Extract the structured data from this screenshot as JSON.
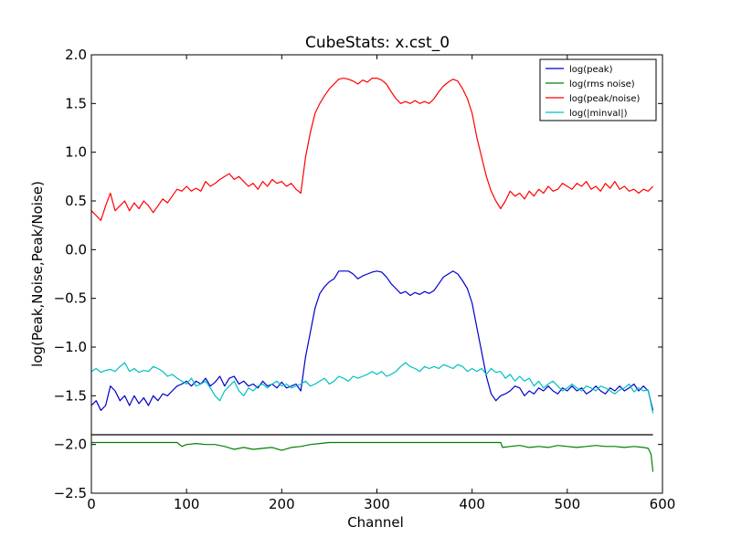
{
  "chart_data": {
    "type": "line",
    "title": "CubeStats: x.cst_0",
    "xlabel": "Channel",
    "ylabel": "log(Peak,Noise,Peak/Noise)",
    "xlim": [
      0,
      600
    ],
    "ylim": [
      -2.5,
      2.0
    ],
    "xticks": [
      "0",
      "100",
      "200",
      "300",
      "400",
      "500",
      "600"
    ],
    "yticks": [
      "2.0",
      "1.5",
      "1.0",
      "0.5",
      "0.0",
      "−0.5",
      "−1.0",
      "−1.5",
      "−2.0",
      "−2.5"
    ],
    "xtick_values": [
      0,
      100,
      200,
      300,
      400,
      500,
      600
    ],
    "ytick_values": [
      2.0,
      1.5,
      1.0,
      0.5,
      0.0,
      -0.5,
      -1.0,
      -1.5,
      -2.0,
      -2.5
    ],
    "grid": false,
    "legend_position": "top-right",
    "series": [
      {
        "name": "log(peak)",
        "color": "#0000cc",
        "x": [
          0,
          5,
          10,
          15,
          20,
          25,
          30,
          35,
          40,
          45,
          50,
          55,
          60,
          65,
          70,
          75,
          80,
          85,
          90,
          95,
          100,
          105,
          110,
          115,
          120,
          125,
          130,
          135,
          140,
          145,
          150,
          155,
          160,
          165,
          170,
          175,
          180,
          185,
          190,
          195,
          200,
          205,
          210,
          215,
          220,
          225,
          230,
          235,
          240,
          245,
          250,
          255,
          260,
          265,
          270,
          275,
          280,
          285,
          290,
          295,
          300,
          305,
          310,
          315,
          320,
          325,
          330,
          335,
          340,
          345,
          350,
          355,
          360,
          365,
          370,
          375,
          380,
          385,
          390,
          395,
          400,
          405,
          410,
          415,
          420,
          425,
          430,
          435,
          440,
          445,
          450,
          455,
          460,
          465,
          470,
          475,
          480,
          485,
          490,
          495,
          500,
          505,
          510,
          515,
          520,
          525,
          530,
          535,
          540,
          545,
          550,
          555,
          560,
          565,
          570,
          575,
          580,
          585,
          590
        ],
        "values": [
          -1.6,
          -1.55,
          -1.65,
          -1.6,
          -1.4,
          -1.45,
          -1.55,
          -1.5,
          -1.6,
          -1.5,
          -1.58,
          -1.52,
          -1.6,
          -1.5,
          -1.55,
          -1.48,
          -1.5,
          -1.45,
          -1.4,
          -1.38,
          -1.35,
          -1.4,
          -1.35,
          -1.38,
          -1.32,
          -1.4,
          -1.36,
          -1.3,
          -1.4,
          -1.32,
          -1.3,
          -1.38,
          -1.35,
          -1.4,
          -1.38,
          -1.42,
          -1.35,
          -1.4,
          -1.38,
          -1.42,
          -1.36,
          -1.42,
          -1.4,
          -1.38,
          -1.45,
          -1.1,
          -0.85,
          -0.6,
          -0.45,
          -0.38,
          -0.33,
          -0.3,
          -0.22,
          -0.22,
          -0.22,
          -0.25,
          -0.3,
          -0.27,
          -0.25,
          -0.23,
          -0.22,
          -0.23,
          -0.28,
          -0.35,
          -0.4,
          -0.45,
          -0.43,
          -0.47,
          -0.44,
          -0.46,
          -0.43,
          -0.45,
          -0.42,
          -0.35,
          -0.28,
          -0.25,
          -0.22,
          -0.25,
          -0.32,
          -0.4,
          -0.55,
          -0.8,
          -1.05,
          -1.3,
          -1.48,
          -1.55,
          -1.5,
          -1.48,
          -1.45,
          -1.4,
          -1.42,
          -1.5,
          -1.45,
          -1.48,
          -1.42,
          -1.45,
          -1.4,
          -1.45,
          -1.48,
          -1.42,
          -1.45,
          -1.4,
          -1.45,
          -1.42,
          -1.48,
          -1.45,
          -1.4,
          -1.45,
          -1.48,
          -1.42,
          -1.45,
          -1.4,
          -1.45,
          -1.42,
          -1.38,
          -1.45,
          -1.4,
          -1.45,
          -1.65
        ]
      },
      {
        "name": "log(rms noise)",
        "color": "#008000",
        "x": [
          0,
          20,
          40,
          60,
          80,
          90,
          95,
          100,
          110,
          120,
          130,
          140,
          150,
          160,
          170,
          180,
          190,
          200,
          210,
          220,
          230,
          240,
          250,
          260,
          280,
          300,
          320,
          340,
          360,
          380,
          400,
          420,
          430,
          432,
          440,
          450,
          460,
          470,
          480,
          490,
          500,
          510,
          520,
          530,
          540,
          550,
          560,
          570,
          580,
          585,
          588,
          590
        ],
        "values": [
          -1.98,
          -1.98,
          -1.98,
          -1.98,
          -1.98,
          -1.98,
          -2.02,
          -2.0,
          -1.99,
          -2.0,
          -2.0,
          -2.02,
          -2.05,
          -2.03,
          -2.05,
          -2.04,
          -2.03,
          -2.06,
          -2.03,
          -2.02,
          -2.0,
          -1.99,
          -1.98,
          -1.98,
          -1.98,
          -1.98,
          -1.98,
          -1.98,
          -1.98,
          -1.98,
          -1.98,
          -1.98,
          -1.98,
          -2.03,
          -2.02,
          -2.01,
          -2.03,
          -2.02,
          -2.03,
          -2.01,
          -2.02,
          -2.03,
          -2.02,
          -2.01,
          -2.02,
          -2.02,
          -2.03,
          -2.02,
          -2.03,
          -2.04,
          -2.1,
          -2.28
        ]
      },
      {
        "name": "log(peak/noise)",
        "color": "#ff0000",
        "x": [
          0,
          5,
          10,
          15,
          20,
          25,
          30,
          35,
          40,
          45,
          50,
          55,
          60,
          65,
          70,
          75,
          80,
          85,
          90,
          95,
          100,
          105,
          110,
          115,
          120,
          125,
          130,
          135,
          140,
          145,
          150,
          155,
          160,
          165,
          170,
          175,
          180,
          185,
          190,
          195,
          200,
          205,
          210,
          215,
          220,
          225,
          230,
          235,
          240,
          245,
          250,
          255,
          260,
          265,
          270,
          275,
          280,
          285,
          290,
          295,
          300,
          305,
          310,
          315,
          320,
          325,
          330,
          335,
          340,
          345,
          350,
          355,
          360,
          365,
          370,
          375,
          380,
          385,
          390,
          395,
          400,
          405,
          410,
          415,
          420,
          425,
          430,
          435,
          440,
          445,
          450,
          455,
          460,
          465,
          470,
          475,
          480,
          485,
          490,
          495,
          500,
          505,
          510,
          515,
          520,
          525,
          530,
          535,
          540,
          545,
          550,
          555,
          560,
          565,
          570,
          575,
          580,
          585,
          590
        ],
        "values": [
          0.4,
          0.35,
          0.3,
          0.45,
          0.58,
          0.4,
          0.45,
          0.5,
          0.4,
          0.48,
          0.42,
          0.5,
          0.45,
          0.38,
          0.45,
          0.52,
          0.48,
          0.55,
          0.62,
          0.6,
          0.65,
          0.6,
          0.63,
          0.6,
          0.7,
          0.65,
          0.68,
          0.72,
          0.75,
          0.78,
          0.72,
          0.75,
          0.7,
          0.65,
          0.68,
          0.62,
          0.7,
          0.65,
          0.72,
          0.68,
          0.7,
          0.65,
          0.68,
          0.62,
          0.58,
          0.95,
          1.2,
          1.4,
          1.5,
          1.58,
          1.65,
          1.7,
          1.75,
          1.76,
          1.75,
          1.73,
          1.7,
          1.74,
          1.72,
          1.76,
          1.76,
          1.74,
          1.7,
          1.62,
          1.55,
          1.5,
          1.52,
          1.5,
          1.53,
          1.5,
          1.52,
          1.5,
          1.55,
          1.62,
          1.68,
          1.72,
          1.75,
          1.73,
          1.65,
          1.55,
          1.4,
          1.15,
          0.95,
          0.75,
          0.6,
          0.5,
          0.42,
          0.5,
          0.6,
          0.55,
          0.58,
          0.52,
          0.6,
          0.55,
          0.62,
          0.58,
          0.65,
          0.6,
          0.62,
          0.68,
          0.65,
          0.62,
          0.68,
          0.65,
          0.7,
          0.62,
          0.65,
          0.6,
          0.68,
          0.63,
          0.7,
          0.62,
          0.65,
          0.6,
          0.62,
          0.58,
          0.62,
          0.6,
          0.65
        ]
      },
      {
        "name": "log(|minval|)",
        "color": "#00bfbf",
        "x": [
          0,
          5,
          10,
          15,
          20,
          25,
          30,
          35,
          40,
          45,
          50,
          55,
          60,
          65,
          70,
          75,
          80,
          85,
          90,
          95,
          100,
          105,
          110,
          115,
          120,
          125,
          130,
          135,
          140,
          145,
          150,
          155,
          160,
          165,
          170,
          175,
          180,
          185,
          190,
          195,
          200,
          205,
          210,
          215,
          220,
          225,
          230,
          235,
          240,
          245,
          250,
          255,
          260,
          265,
          270,
          275,
          280,
          285,
          290,
          295,
          300,
          305,
          310,
          315,
          320,
          325,
          330,
          335,
          340,
          345,
          350,
          355,
          360,
          365,
          370,
          375,
          380,
          385,
          390,
          395,
          400,
          405,
          410,
          415,
          420,
          425,
          430,
          435,
          440,
          445,
          450,
          455,
          460,
          465,
          470,
          475,
          480,
          485,
          490,
          495,
          500,
          505,
          510,
          515,
          520,
          525,
          530,
          535,
          540,
          545,
          550,
          555,
          560,
          565,
          570,
          575,
          580,
          585,
          590
        ],
        "values": [
          -1.25,
          -1.22,
          -1.26,
          -1.24,
          -1.23,
          -1.25,
          -1.2,
          -1.16,
          -1.25,
          -1.22,
          -1.26,
          -1.24,
          -1.25,
          -1.2,
          -1.22,
          -1.25,
          -1.3,
          -1.28,
          -1.32,
          -1.35,
          -1.38,
          -1.32,
          -1.4,
          -1.38,
          -1.35,
          -1.42,
          -1.5,
          -1.55,
          -1.45,
          -1.4,
          -1.35,
          -1.45,
          -1.5,
          -1.42,
          -1.45,
          -1.4,
          -1.38,
          -1.42,
          -1.38,
          -1.35,
          -1.4,
          -1.38,
          -1.42,
          -1.4,
          -1.38,
          -1.35,
          -1.4,
          -1.38,
          -1.35,
          -1.32,
          -1.38,
          -1.35,
          -1.3,
          -1.32,
          -1.35,
          -1.3,
          -1.32,
          -1.3,
          -1.28,
          -1.25,
          -1.28,
          -1.25,
          -1.3,
          -1.28,
          -1.25,
          -1.2,
          -1.16,
          -1.2,
          -1.22,
          -1.25,
          -1.2,
          -1.22,
          -1.2,
          -1.22,
          -1.18,
          -1.2,
          -1.22,
          -1.18,
          -1.2,
          -1.25,
          -1.22,
          -1.25,
          -1.22,
          -1.28,
          -1.22,
          -1.26,
          -1.25,
          -1.32,
          -1.28,
          -1.35,
          -1.3,
          -1.35,
          -1.32,
          -1.4,
          -1.35,
          -1.42,
          -1.38,
          -1.35,
          -1.4,
          -1.45,
          -1.42,
          -1.38,
          -1.42,
          -1.45,
          -1.4,
          -1.42,
          -1.45,
          -1.4,
          -1.42,
          -1.45,
          -1.48,
          -1.44,
          -1.42,
          -1.38,
          -1.46,
          -1.42,
          -1.45,
          -1.44,
          -1.68
        ]
      },
      {
        "name": "",
        "color": "#000000",
        "x": [
          0,
          590
        ],
        "values": [
          -1.9,
          -1.9
        ]
      }
    ]
  }
}
